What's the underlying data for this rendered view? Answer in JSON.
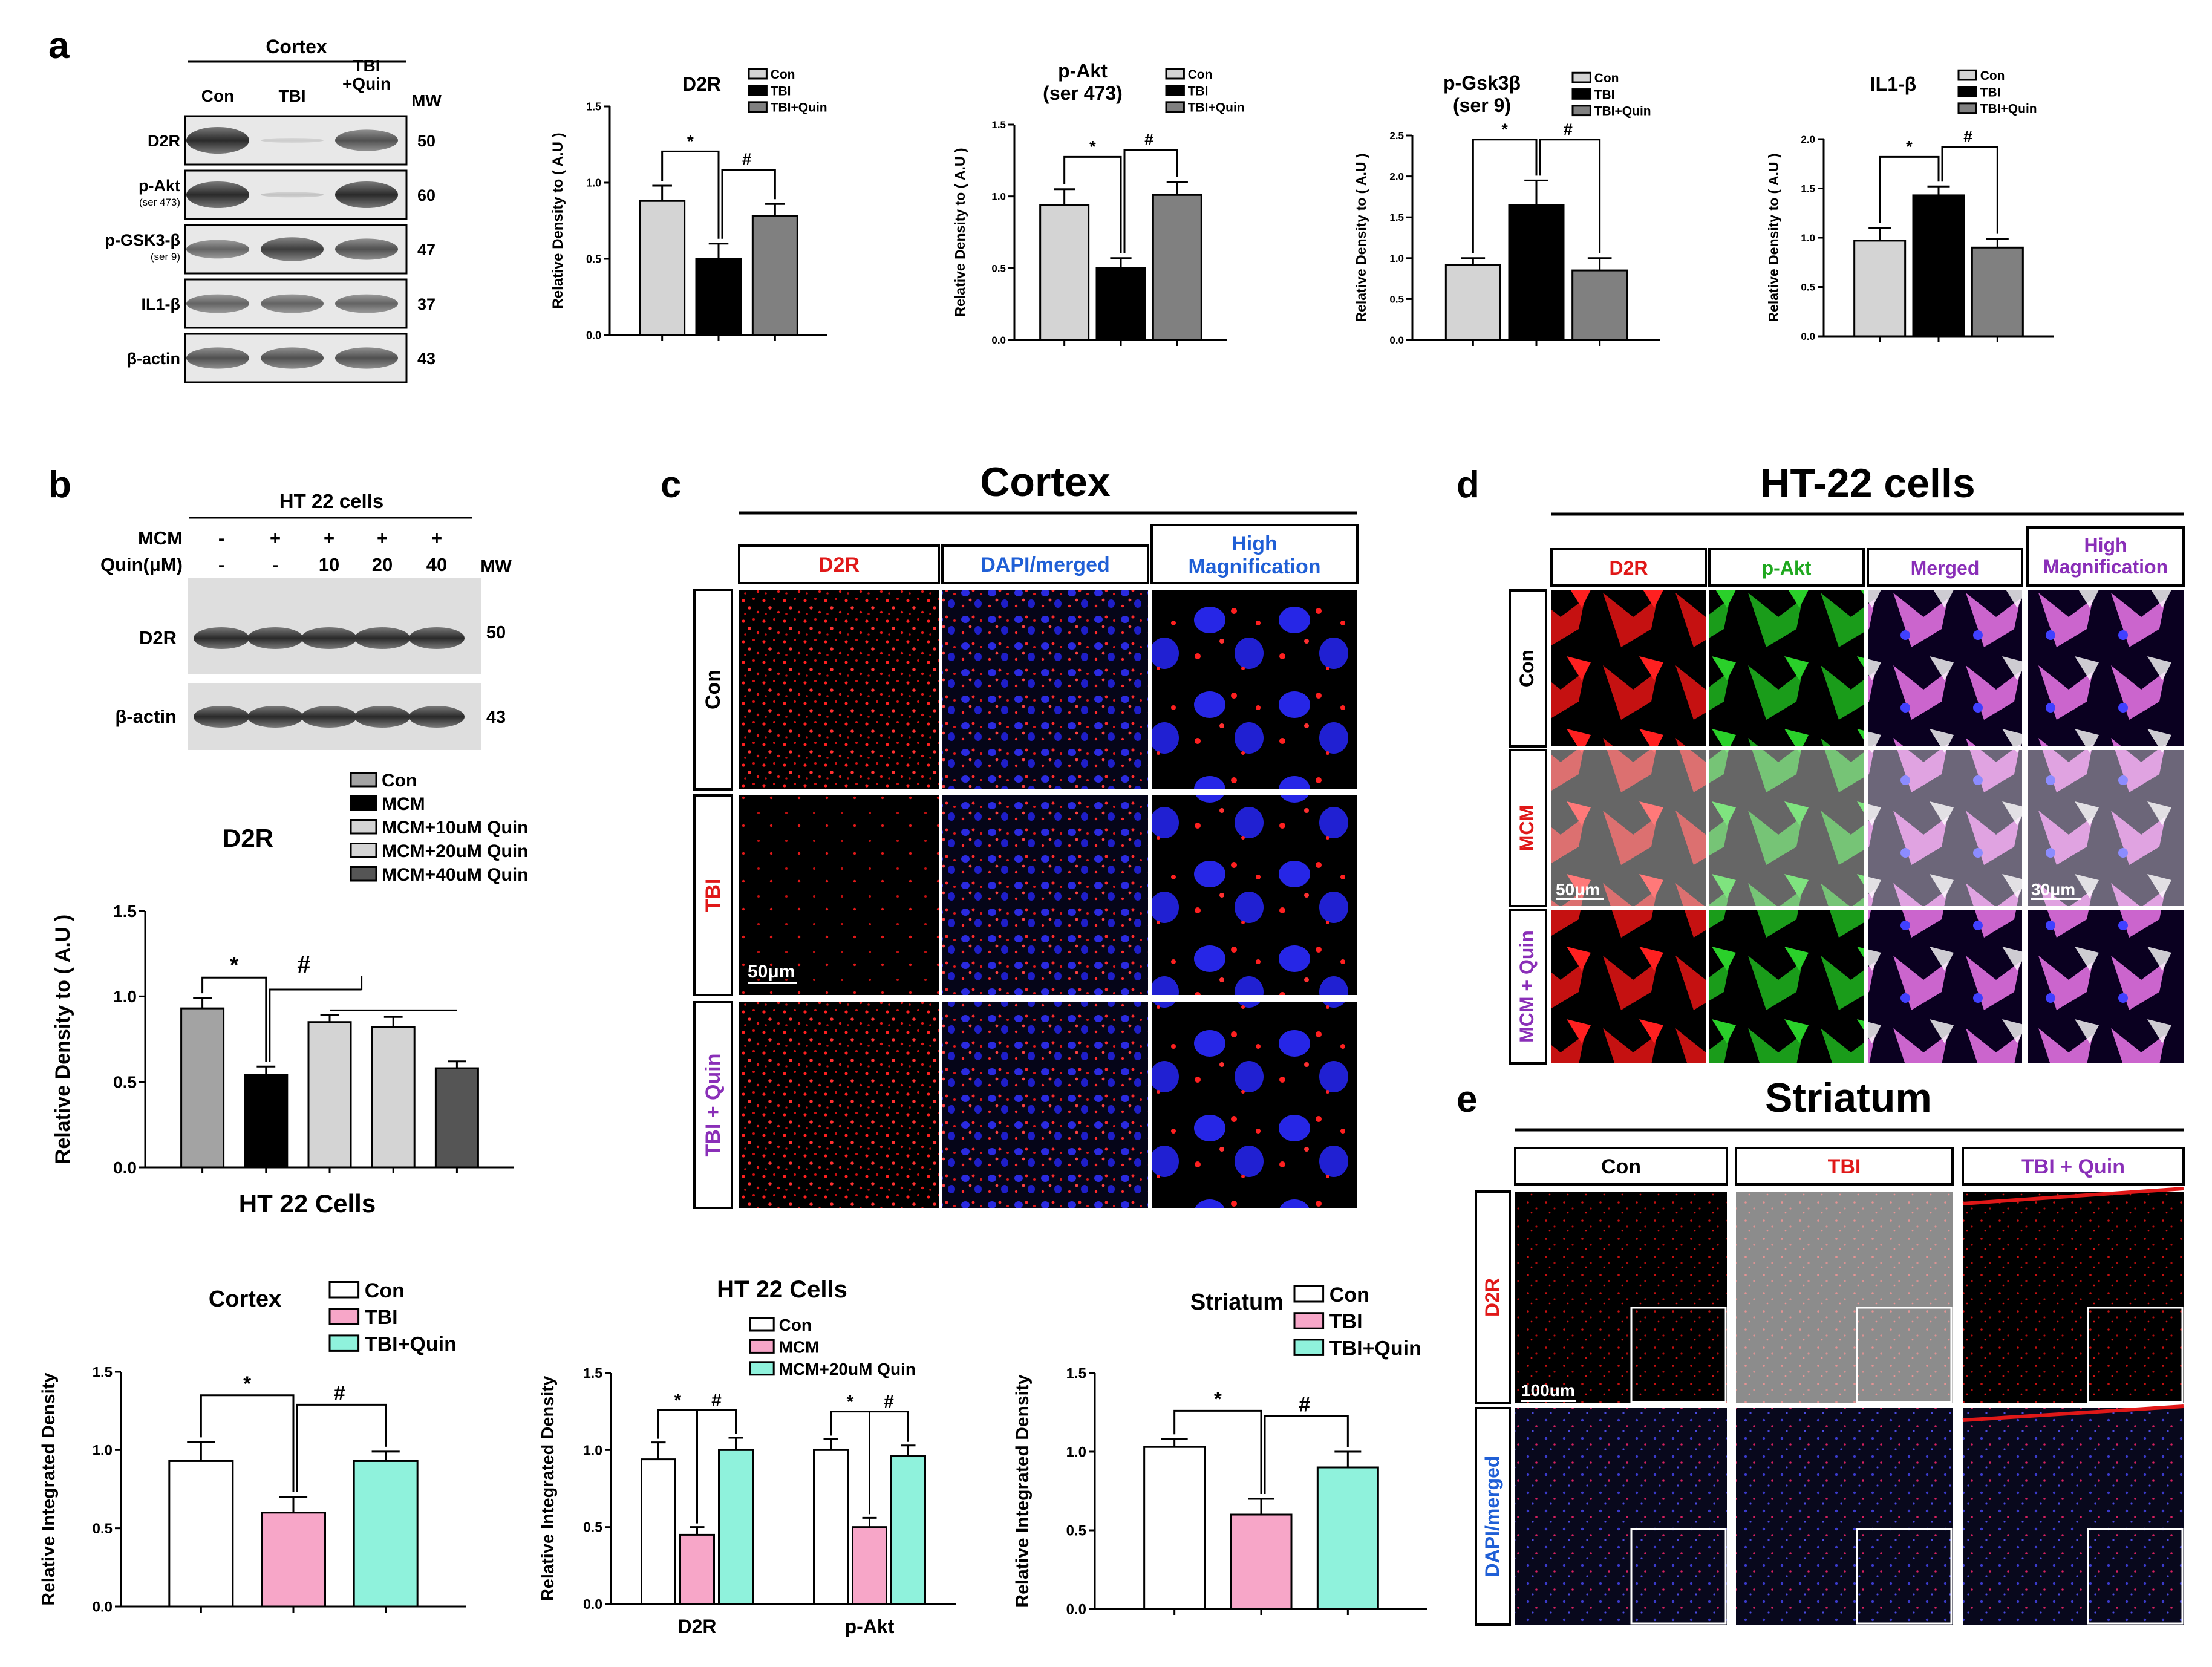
{
  "panel_labels": {
    "a": "a",
    "b": "b",
    "c": "c",
    "d": "d",
    "e": "e"
  },
  "panel_a_blot": {
    "title": "Cortex",
    "lanes": [
      "Con",
      "TBI",
      "TBI\n+Quin"
    ],
    "mw_header": "MW",
    "rows": [
      {
        "label": "D2R",
        "sub": "",
        "mw": "50"
      },
      {
        "label": "p-Akt",
        "sub": "(ser 473)",
        "mw": "60"
      },
      {
        "label": "p-GSK3-β",
        "sub": "(ser 9)",
        "mw": "47"
      },
      {
        "label": "IL1-β",
        "sub": "",
        "mw": "37"
      },
      {
        "label": "β-actin",
        "sub": "",
        "mw": "43"
      }
    ]
  },
  "panel_b_blot": {
    "title": "HT 22 cells",
    "mcm_label": "MCM",
    "quin_label": "Quin(μM)",
    "mcm_row": [
      "-",
      "+",
      "+",
      "+",
      "+"
    ],
    "quin_row": [
      "-",
      "-",
      "10",
      "20",
      "40"
    ],
    "mw_header": "MW",
    "rows": [
      {
        "label": "D2R",
        "mw": "50"
      },
      {
        "label": "β-actin",
        "mw": "43"
      }
    ]
  },
  "chart_data": [
    {
      "id": "a1",
      "type": "bar",
      "title": "D2R",
      "ylabel": "Relative Density to ( A.U )",
      "categories": [
        "Con",
        "TBI",
        "TBI+Quin"
      ],
      "values": [
        0.88,
        0.5,
        0.78
      ],
      "errors": [
        0.1,
        0.1,
        0.08
      ],
      "ylim": [
        0,
        1.5
      ],
      "yticks": [
        "0.0",
        "0.5",
        "1.0",
        "1.5"
      ],
      "colors": [
        "#d4d4d4",
        "#000000",
        "#808080"
      ],
      "legend": [
        "Con",
        "TBI",
        "TBI+Quin"
      ],
      "sig": [
        "*",
        "#"
      ]
    },
    {
      "id": "a2",
      "type": "bar",
      "title": "p-Akt\n(ser 473)",
      "ylabel": "Relative Density to ( A.U )",
      "categories": [
        "Con",
        "TBI",
        "TBI+Quin"
      ],
      "values": [
        0.94,
        0.5,
        1.01
      ],
      "errors": [
        0.11,
        0.07,
        0.09
      ],
      "ylim": [
        0,
        1.5
      ],
      "yticks": [
        "0.0",
        "0.5",
        "1.0",
        "1.5"
      ],
      "colors": [
        "#d4d4d4",
        "#000000",
        "#808080"
      ],
      "legend": [
        "Con",
        "TBI",
        "TBI+Quin"
      ],
      "sig": [
        "*",
        "#"
      ]
    },
    {
      "id": "a3",
      "type": "bar",
      "title": "p-Gsk3β\n(ser 9)",
      "ylabel": "Relative Density to ( A.U )",
      "categories": [
        "Con",
        "TBI",
        "TBI+Quin"
      ],
      "values": [
        0.92,
        1.65,
        0.85
      ],
      "errors": [
        0.08,
        0.3,
        0.15
      ],
      "ylim": [
        0,
        2.5
      ],
      "yticks": [
        "0.0",
        "0.5",
        "1.0",
        "1.5",
        "2.0",
        "2.5"
      ],
      "colors": [
        "#d4d4d4",
        "#000000",
        "#808080"
      ],
      "legend": [
        "Con",
        "TBI",
        "TBI+Quin"
      ],
      "sig": [
        "*",
        "#"
      ]
    },
    {
      "id": "a4",
      "type": "bar",
      "title": "IL1-β",
      "ylabel": "Relative Density to ( A.U )",
      "categories": [
        "Con",
        "TBI",
        "TBI+Quin"
      ],
      "values": [
        0.97,
        1.43,
        0.9
      ],
      "errors": [
        0.13,
        0.09,
        0.09
      ],
      "ylim": [
        0,
        2.0
      ],
      "yticks": [
        "0.0",
        "0.5",
        "1.0",
        "1.5",
        "2.0"
      ],
      "colors": [
        "#d4d4d4",
        "#000000",
        "#808080"
      ],
      "legend": [
        "Con",
        "TBI",
        "TBI+Quin"
      ],
      "sig": [
        "*",
        "#"
      ]
    },
    {
      "id": "b1",
      "type": "bar",
      "title": "D2R",
      "ylabel": "Relative Density to ( A.U )",
      "xlabel": "HT 22 Cells",
      "categories": [
        "Con",
        "MCM",
        "MCM+10uM Quin",
        "MCM+20uM Quin",
        "MCM+40uM Quin"
      ],
      "values": [
        0.93,
        0.54,
        0.85,
        0.82,
        0.58
      ],
      "errors": [
        0.06,
        0.05,
        0.04,
        0.06,
        0.04
      ],
      "ylim": [
        0,
        1.5
      ],
      "yticks": [
        "0.0",
        "0.5",
        "1.0",
        "1.5"
      ],
      "colors": [
        "#a3a3a3",
        "#000000",
        "#d4d4d4",
        "#d4d4d4",
        "#555555"
      ],
      "legend": [
        "Con",
        "MCM",
        "MCM+10uM Quin",
        "MCM+20uM Quin",
        "MCM+40uM Quin"
      ],
      "sig": [
        "*",
        "#"
      ]
    },
    {
      "id": "c1",
      "type": "bar",
      "title": "Cortex",
      "ylabel": "Relative Integrated Density",
      "categories": [
        "Con",
        "TBI",
        "TBI+Quin"
      ],
      "values": [
        0.93,
        0.6,
        0.93
      ],
      "errors": [
        0.12,
        0.1,
        0.06
      ],
      "ylim": [
        0,
        1.5
      ],
      "yticks": [
        "0.0",
        "0.5",
        "1.0",
        "1.5"
      ],
      "colors": [
        "#ffffff",
        "#f7a6c8",
        "#8ff2dc"
      ],
      "legend": [
        "Con",
        "TBI",
        "TBI+Quin"
      ],
      "sig": [
        "*",
        "#"
      ]
    },
    {
      "id": "d1",
      "type": "bar",
      "title": "HT 22 Cells",
      "ylabel": "Relative Integrated Density",
      "categories": [
        "D2R",
        "p-Akt"
      ],
      "series": [
        {
          "name": "Con",
          "values": [
            0.94,
            1.0
          ],
          "errors": [
            0.11,
            0.07
          ]
        },
        {
          "name": "MCM",
          "values": [
            0.45,
            0.5
          ],
          "errors": [
            0.05,
            0.06
          ]
        },
        {
          "name": "MCM+20uM Quin",
          "values": [
            1.0,
            0.96
          ],
          "errors": [
            0.08,
            0.07
          ]
        }
      ],
      "ylim": [
        0,
        1.5
      ],
      "yticks": [
        "0.0",
        "0.5",
        "1.0",
        "1.5"
      ],
      "colors": [
        "#ffffff",
        "#f7a6c8",
        "#8ff2dc"
      ],
      "legend": [
        "Con",
        "MCM",
        "MCM+20uM Quin"
      ],
      "sig": [
        "*",
        "#"
      ]
    },
    {
      "id": "e1",
      "type": "bar",
      "title": "Striatum",
      "ylabel": "Relative Integrated Density",
      "categories": [
        "Con",
        "TBI",
        "TBI+Quin"
      ],
      "values": [
        1.03,
        0.6,
        0.9
      ],
      "errors": [
        0.05,
        0.1,
        0.1
      ],
      "ylim": [
        0,
        1.5
      ],
      "yticks": [
        "0.0",
        "0.5",
        "1.0",
        "1.5"
      ],
      "colors": [
        "#ffffff",
        "#f7a6c8",
        "#8ff2dc"
      ],
      "legend": [
        "Con",
        "TBI",
        "TBI+Quin"
      ],
      "sig": [
        "*",
        "#"
      ]
    }
  ],
  "panel_c": {
    "title": "Cortex",
    "cols": [
      "D2R",
      "DAPI/merged",
      "High\nMagnification"
    ],
    "rows": [
      "Con",
      "TBI",
      "TBI + Quin"
    ],
    "scale": "50μm"
  },
  "panel_d": {
    "title": "HT-22 cells",
    "cols": [
      "D2R",
      "p-Akt",
      "Merged",
      "High\nMagnification"
    ],
    "rows": [
      "Con",
      "MCM",
      "MCM + Quin"
    ],
    "scale1": "50μm",
    "scale2": "30μm"
  },
  "panel_e": {
    "title": "Striatum",
    "cols": [
      "Con",
      "TBI",
      "TBI + Quin"
    ],
    "rows": [
      "D2R",
      "DAPI/merged"
    ],
    "scale": "100um"
  }
}
